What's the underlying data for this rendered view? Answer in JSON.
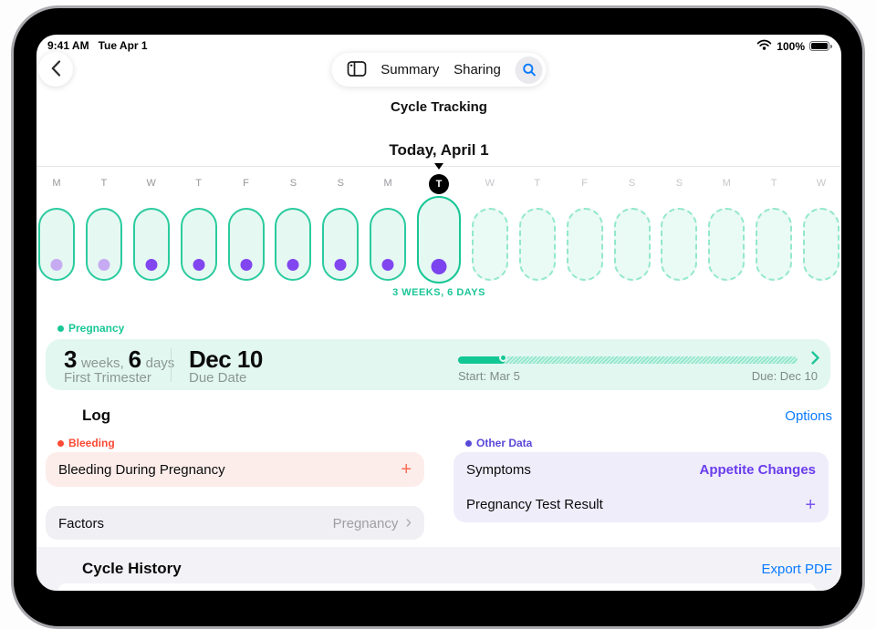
{
  "status_bar": {
    "time": "9:41 AM",
    "date": "Tue Apr 1",
    "battery": "100%"
  },
  "nav": {
    "title": "Cycle Tracking",
    "tabs": [
      {
        "label": "Summary"
      },
      {
        "label": "Sharing"
      }
    ],
    "icons": {
      "back": "chevron-left",
      "sidebar": "sidebar-toggle",
      "search": "magnifier",
      "wifi": "wifi",
      "battery": "battery-full"
    }
  },
  "timeline": {
    "heading": "Today, April 1",
    "caption": "3 WEEKS, 6 DAYS",
    "days": [
      {
        "letter": "M",
        "state": "past",
        "dot": "light"
      },
      {
        "letter": "T",
        "state": "past",
        "dot": "light"
      },
      {
        "letter": "W",
        "state": "past",
        "dot": "dark"
      },
      {
        "letter": "T",
        "state": "past",
        "dot": "dark"
      },
      {
        "letter": "F",
        "state": "past",
        "dot": "dark"
      },
      {
        "letter": "S",
        "state": "past",
        "dot": "dark"
      },
      {
        "letter": "S",
        "state": "past",
        "dot": "dark"
      },
      {
        "letter": "M",
        "state": "past",
        "dot": "dark"
      },
      {
        "letter": "T",
        "state": "today",
        "dot": "dark"
      },
      {
        "letter": "W",
        "state": "future",
        "dot": "none"
      },
      {
        "letter": "T",
        "state": "future",
        "dot": "none"
      },
      {
        "letter": "F",
        "state": "future",
        "dot": "none"
      },
      {
        "letter": "S",
        "state": "future",
        "dot": "none"
      },
      {
        "letter": "S",
        "state": "future",
        "dot": "none"
      },
      {
        "letter": "M",
        "state": "future",
        "dot": "none"
      },
      {
        "letter": "T",
        "state": "future",
        "dot": "none"
      },
      {
        "letter": "W",
        "state": "future",
        "dot": "none"
      }
    ]
  },
  "pregnancy": {
    "label": "Pregnancy",
    "weeks_value": "3",
    "weeks_unit": "weeks,",
    "days_value": "6",
    "days_unit": "days",
    "trimester": "First Trimester",
    "due_value": "Dec 10",
    "due_label": "Due Date",
    "progress_percent": 14,
    "start_caption": "Start: Mar 5",
    "due_caption": "Due: Dec 10"
  },
  "log": {
    "title": "Log",
    "options_label": "Options",
    "bleeding": {
      "label": "Bleeding",
      "item": "Bleeding During Pregnancy",
      "add": "+"
    },
    "factors": {
      "name": "Factors",
      "value": "Pregnancy",
      "chevron": "›"
    },
    "other_data": {
      "label": "Other Data",
      "rows": [
        {
          "name": "Symptoms",
          "value": "Appetite Changes"
        },
        {
          "name": "Pregnancy Test Result",
          "value": "+"
        }
      ]
    }
  },
  "history": {
    "title": "Cycle History",
    "export_label": "Export PDF"
  },
  "colors": {
    "accent_teal": "#13c795",
    "dot_purple": "#8146ef",
    "dot_light_purple": "#c7abf2",
    "bleeding_coral": "#fc4a34",
    "other_indigo": "#5849d8",
    "link_blue": "#0a7aff"
  }
}
